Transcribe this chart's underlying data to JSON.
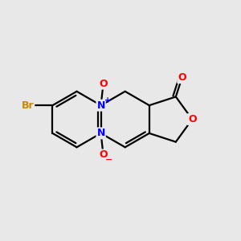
{
  "background_color": "#e8e8e8",
  "bond_color": "#000000",
  "atom_colors": {
    "N": "#0000ff",
    "O": "#ff0000",
    "Br": "#cc8800",
    "C": "#000000"
  },
  "figsize": [
    3.0,
    3.0
  ],
  "dpi": 100
}
